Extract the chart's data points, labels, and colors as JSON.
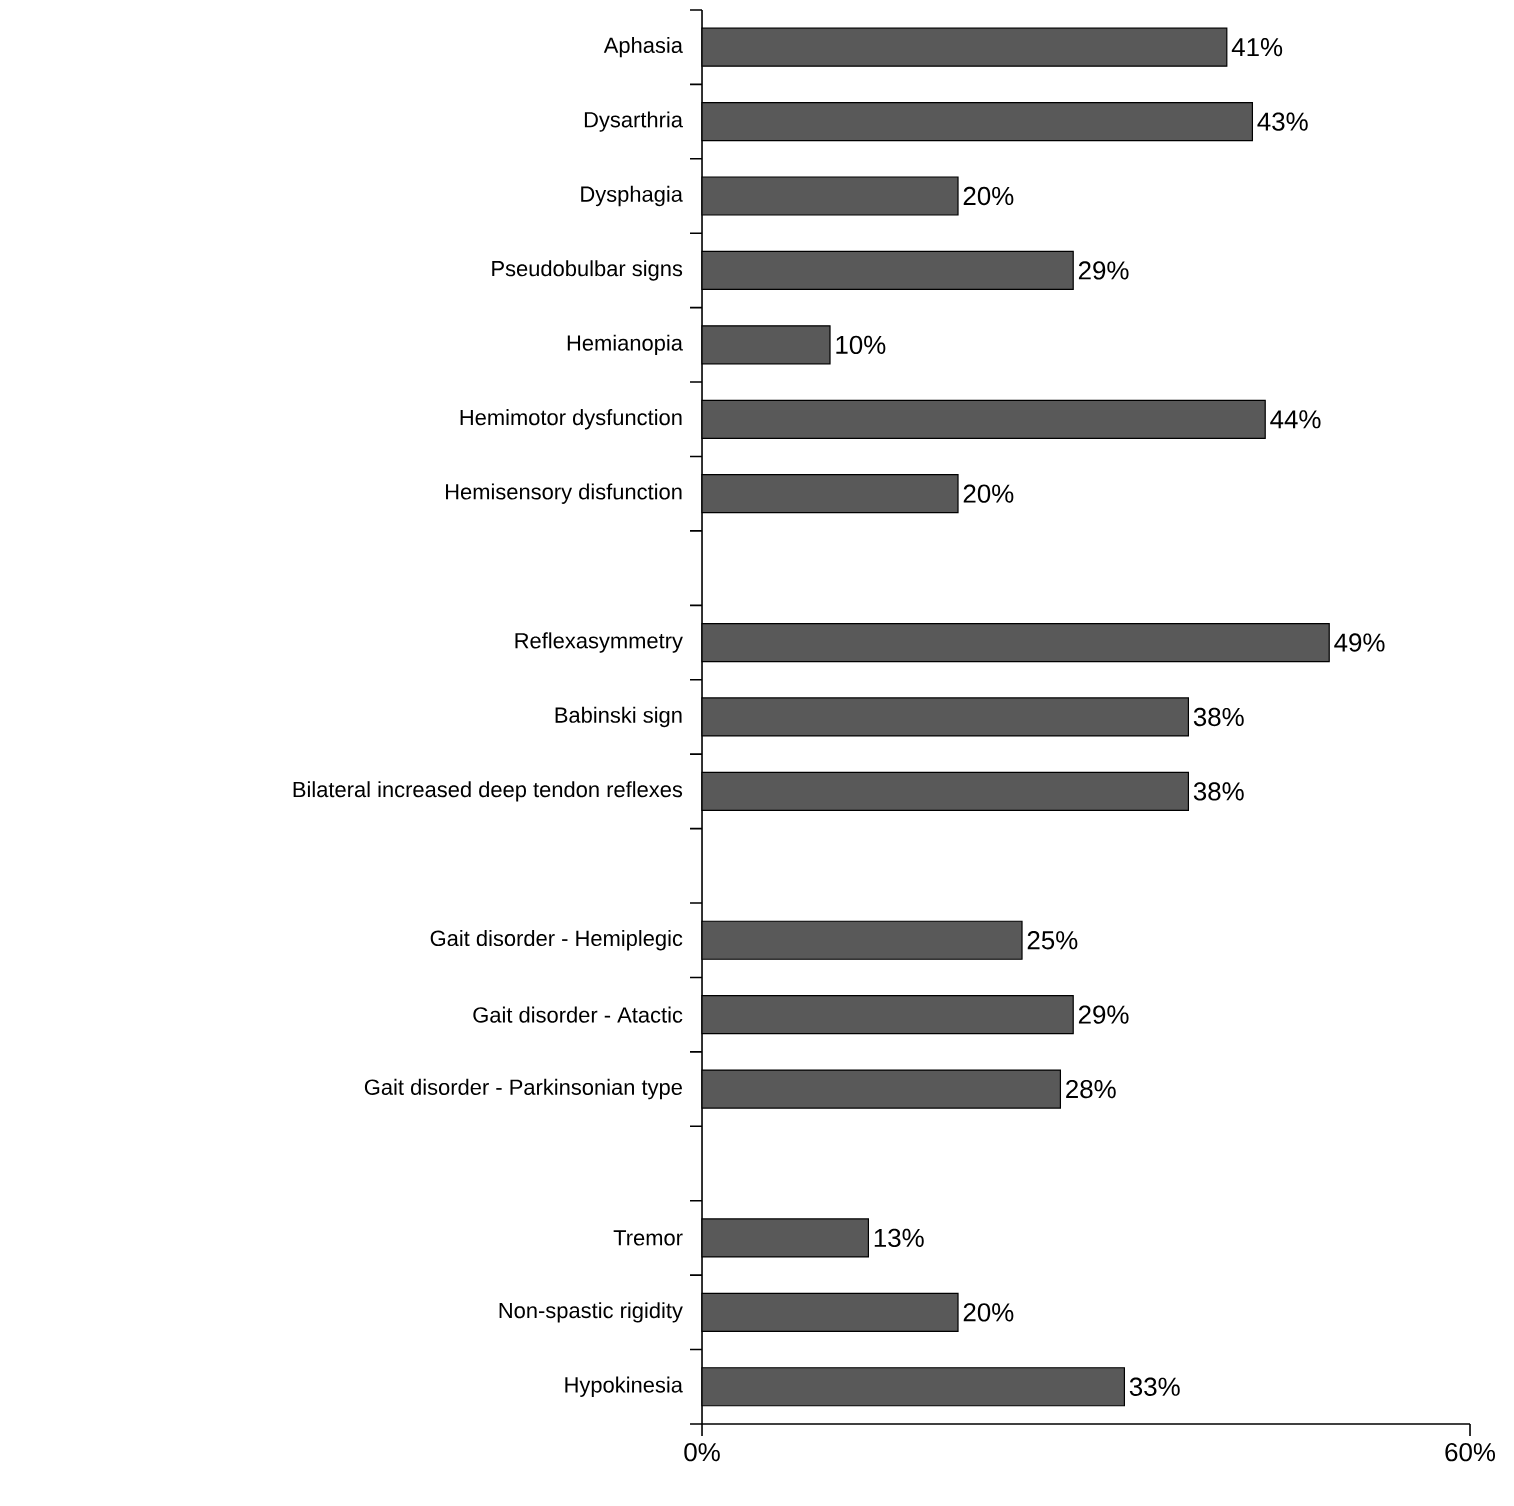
{
  "chart_data": {
    "type": "bar",
    "orientation": "horizontal",
    "categories": [
      "Aphasia",
      "Dysarthria",
      "Dysphagia",
      "Pseudobulbar signs",
      "Hemianopia",
      "Hemimotor dysfunction",
      "Hemisensory disfunction",
      null,
      "Reflexasymmetry",
      "Babinski sign",
      "Bilateral increased deep tendon reflexes",
      null,
      "Gait disorder - Hemiplegic",
      "Gait disorder - Atactic",
      "Gait disorder - Parkinsonian type",
      null,
      "Tremor",
      "Non-spastic rigidity",
      "Hypokinesia"
    ],
    "values": [
      41,
      43,
      20,
      29,
      10,
      44,
      20,
      null,
      49,
      38,
      38,
      null,
      25,
      29,
      28,
      null,
      13,
      20,
      33
    ],
    "value_labels": [
      "41%",
      "43%",
      "20%",
      "29%",
      "10%",
      "44%",
      "20%",
      null,
      "49%",
      "38%",
      "38%",
      null,
      "25%",
      "29%",
      "28%",
      null,
      "13%",
      "20%",
      "33%"
    ],
    "color": "#595959",
    "xlim": [
      0,
      60
    ],
    "xticks": [
      {
        "value": 0,
        "label": "0%"
      },
      {
        "value": 60,
        "label": "60%"
      }
    ],
    "grid": false
  }
}
